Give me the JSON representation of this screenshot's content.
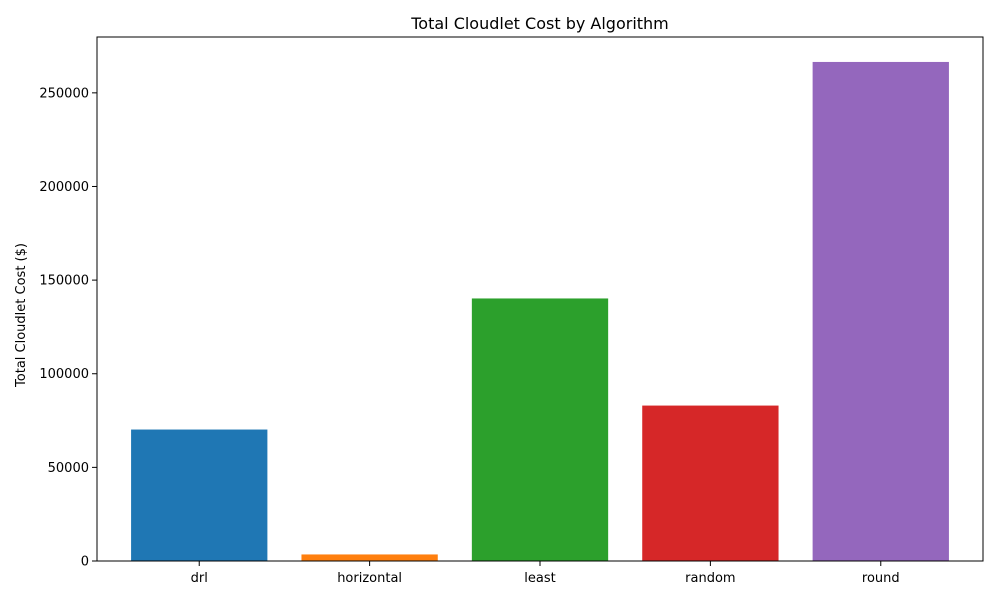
{
  "chart_data": {
    "type": "bar",
    "title": "Total Cloudlet Cost by Algorithm",
    "xlabel": "",
    "ylabel": "Total Cloudlet Cost ($)",
    "categories": [
      "drl",
      "horizontal",
      "least",
      "random",
      "round"
    ],
    "values": [
      70200,
      3500,
      140200,
      83000,
      266500
    ],
    "colors": [
      "#1f77b4",
      "#ff7f0e",
      "#2ca02c",
      "#d62728",
      "#9467bd"
    ],
    "ylim": [
      0,
      279825
    ],
    "yticks": [
      0,
      50000,
      100000,
      150000,
      200000,
      250000
    ],
    "ytick_labels": [
      "0",
      "50000",
      "100000",
      "150000",
      "200000",
      "250000"
    ],
    "grid": false,
    "legend": "none"
  }
}
